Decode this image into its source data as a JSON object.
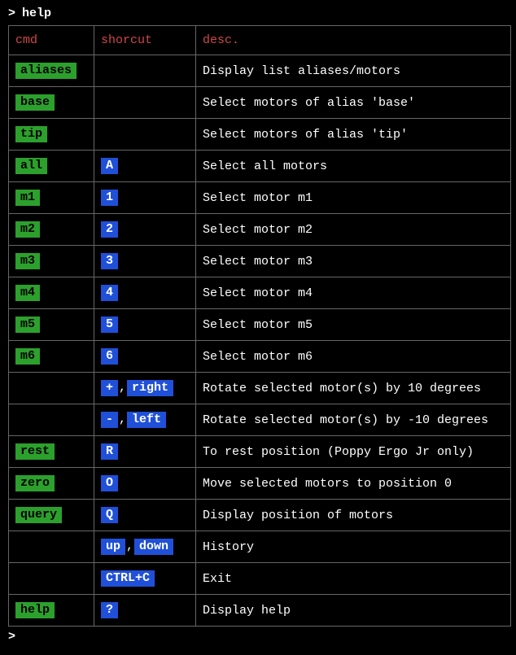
{
  "prompt": {
    "char": ">",
    "command": "help"
  },
  "table": {
    "headers": {
      "cmd": "cmd",
      "shortcut": "shorcut",
      "desc": "desc."
    },
    "rows": [
      {
        "cmd": "aliases",
        "shortcuts": [],
        "desc": "Display list aliases/motors"
      },
      {
        "cmd": "base",
        "shortcuts": [],
        "desc": "Select motors of alias 'base'"
      },
      {
        "cmd": "tip",
        "shortcuts": [],
        "desc": "Select motors of alias 'tip'"
      },
      {
        "cmd": "all",
        "shortcuts": [
          "A"
        ],
        "desc": "Select all motors"
      },
      {
        "cmd": "m1",
        "shortcuts": [
          "1"
        ],
        "desc": "Select motor m1"
      },
      {
        "cmd": "m2",
        "shortcuts": [
          "2"
        ],
        "desc": "Select motor m2"
      },
      {
        "cmd": "m3",
        "shortcuts": [
          "3"
        ],
        "desc": "Select motor m3"
      },
      {
        "cmd": "m4",
        "shortcuts": [
          "4"
        ],
        "desc": "Select motor m4"
      },
      {
        "cmd": "m5",
        "shortcuts": [
          "5"
        ],
        "desc": "Select motor m5"
      },
      {
        "cmd": "m6",
        "shortcuts": [
          "6"
        ],
        "desc": "Select motor m6"
      },
      {
        "cmd": "",
        "shortcuts": [
          "+",
          "right"
        ],
        "desc": "Rotate selected motor(s) by 10 degrees"
      },
      {
        "cmd": "",
        "shortcuts": [
          "-",
          "left"
        ],
        "desc": "Rotate selected motor(s) by -10 degrees"
      },
      {
        "cmd": "rest",
        "shortcuts": [
          "R"
        ],
        "desc": "To rest position (Poppy Ergo Jr only)"
      },
      {
        "cmd": "zero",
        "shortcuts": [
          "O"
        ],
        "desc": "Move selected motors to position 0"
      },
      {
        "cmd": "query",
        "shortcuts": [
          "Q"
        ],
        "desc": "Display position of motors"
      },
      {
        "cmd": "",
        "shortcuts": [
          "up",
          "down"
        ],
        "desc": "History"
      },
      {
        "cmd": "",
        "shortcuts": [
          "CTRL+C"
        ],
        "desc": "Exit"
      },
      {
        "cmd": "help",
        "shortcuts": [
          "?"
        ],
        "desc": "Display help"
      }
    ]
  },
  "bottom_prompt": {
    "char": ">"
  },
  "colors": {
    "background": "#000000",
    "text": "#ffffff",
    "header": "#d04648",
    "cmd_badge_bg": "#2ca02c",
    "cmd_badge_fg": "#000000",
    "shortcut_badge_bg": "#2050d8",
    "shortcut_badge_fg": "#ffffff",
    "border": "#666666"
  }
}
